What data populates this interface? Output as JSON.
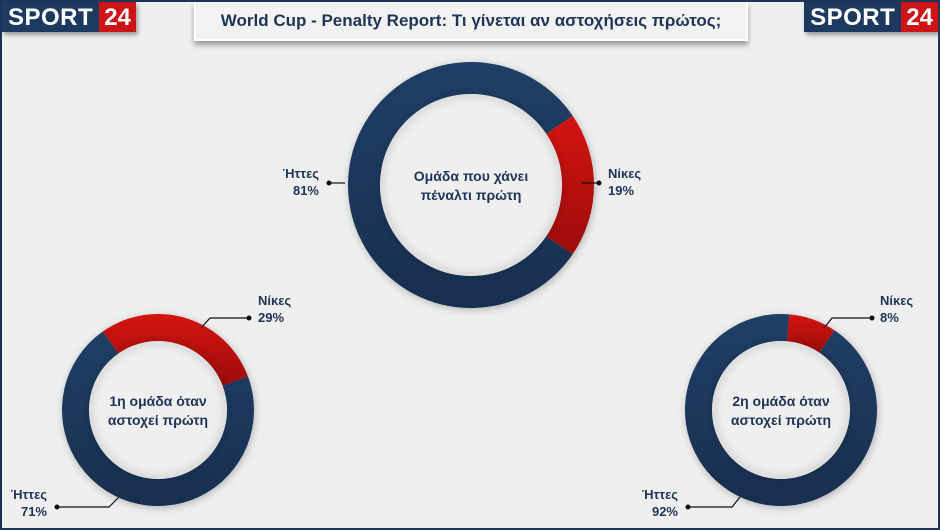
{
  "logo": {
    "word": "SPORT",
    "number": "24"
  },
  "title": "World Cup - Penalty Report: Τι γίνεται αν αστοχήσεις πρώτος;",
  "colors": {
    "losses": "#1c3a60",
    "wins": "#c41210",
    "text": "#1c3558",
    "background": "#efefef"
  },
  "chart_data": [
    {
      "type": "pie",
      "donut": true,
      "title": [
        "Ομάδα που χάνει",
        "πέναλτι πρώτη"
      ],
      "slices": [
        {
          "label": "Νίκες",
          "value": 19,
          "display": "19%"
        },
        {
          "label": "Ήττες",
          "value": 81,
          "display": "81%"
        }
      ]
    },
    {
      "type": "pie",
      "donut": true,
      "title": [
        "1η ομάδα όταν",
        "αστοχεί πρώτη"
      ],
      "slices": [
        {
          "label": "Νίκες",
          "value": 29,
          "display": "29%"
        },
        {
          "label": "Ήττες",
          "value": 71,
          "display": "71%"
        }
      ]
    },
    {
      "type": "pie",
      "donut": true,
      "title": [
        "2η ομάδα όταν",
        "αστοχεί πρώτη"
      ],
      "slices": [
        {
          "label": "Νίκες",
          "value": 8,
          "display": "8%"
        },
        {
          "label": "Ήττες",
          "value": 92,
          "display": "92%"
        }
      ]
    }
  ]
}
